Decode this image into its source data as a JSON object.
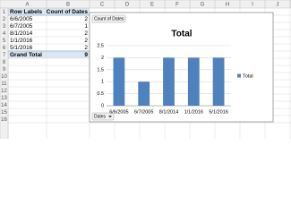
{
  "spreadsheet": {
    "columns": [
      "A",
      "B",
      "C",
      "D",
      "E",
      "F",
      "G",
      "H",
      "I",
      "J"
    ],
    "rows": [
      1,
      2,
      3,
      4,
      5,
      6,
      7,
      8,
      9,
      10,
      11,
      12,
      13,
      14,
      15,
      16
    ],
    "pivot": {
      "header": [
        "Row Labels",
        "Count of Dates"
      ],
      "rows": [
        [
          "6/6/2005",
          2
        ],
        [
          "6/7/2005",
          1
        ],
        [
          "8/1/2014",
          2
        ],
        [
          "1/1/2016",
          2
        ],
        [
          "5/1/2016",
          2
        ]
      ],
      "grand_total": [
        "Grand Total",
        9
      ]
    }
  },
  "chart_data": {
    "type": "bar",
    "title": "Total",
    "field_button": "Count of Dates",
    "axis_button": "Dates",
    "categories": [
      "6/6/2005",
      "6/7/2005",
      "8/1/2014",
      "1/1/2016",
      "5/1/2016"
    ],
    "series": [
      {
        "name": "Total",
        "color": "#4f81bd",
        "values": [
          2,
          1,
          2,
          2,
          2
        ]
      }
    ],
    "ylim": [
      0,
      2.5
    ],
    "yticks": [
      0,
      0.5,
      1,
      1.5,
      2,
      2.5
    ],
    "grid": true,
    "legend": "right"
  }
}
